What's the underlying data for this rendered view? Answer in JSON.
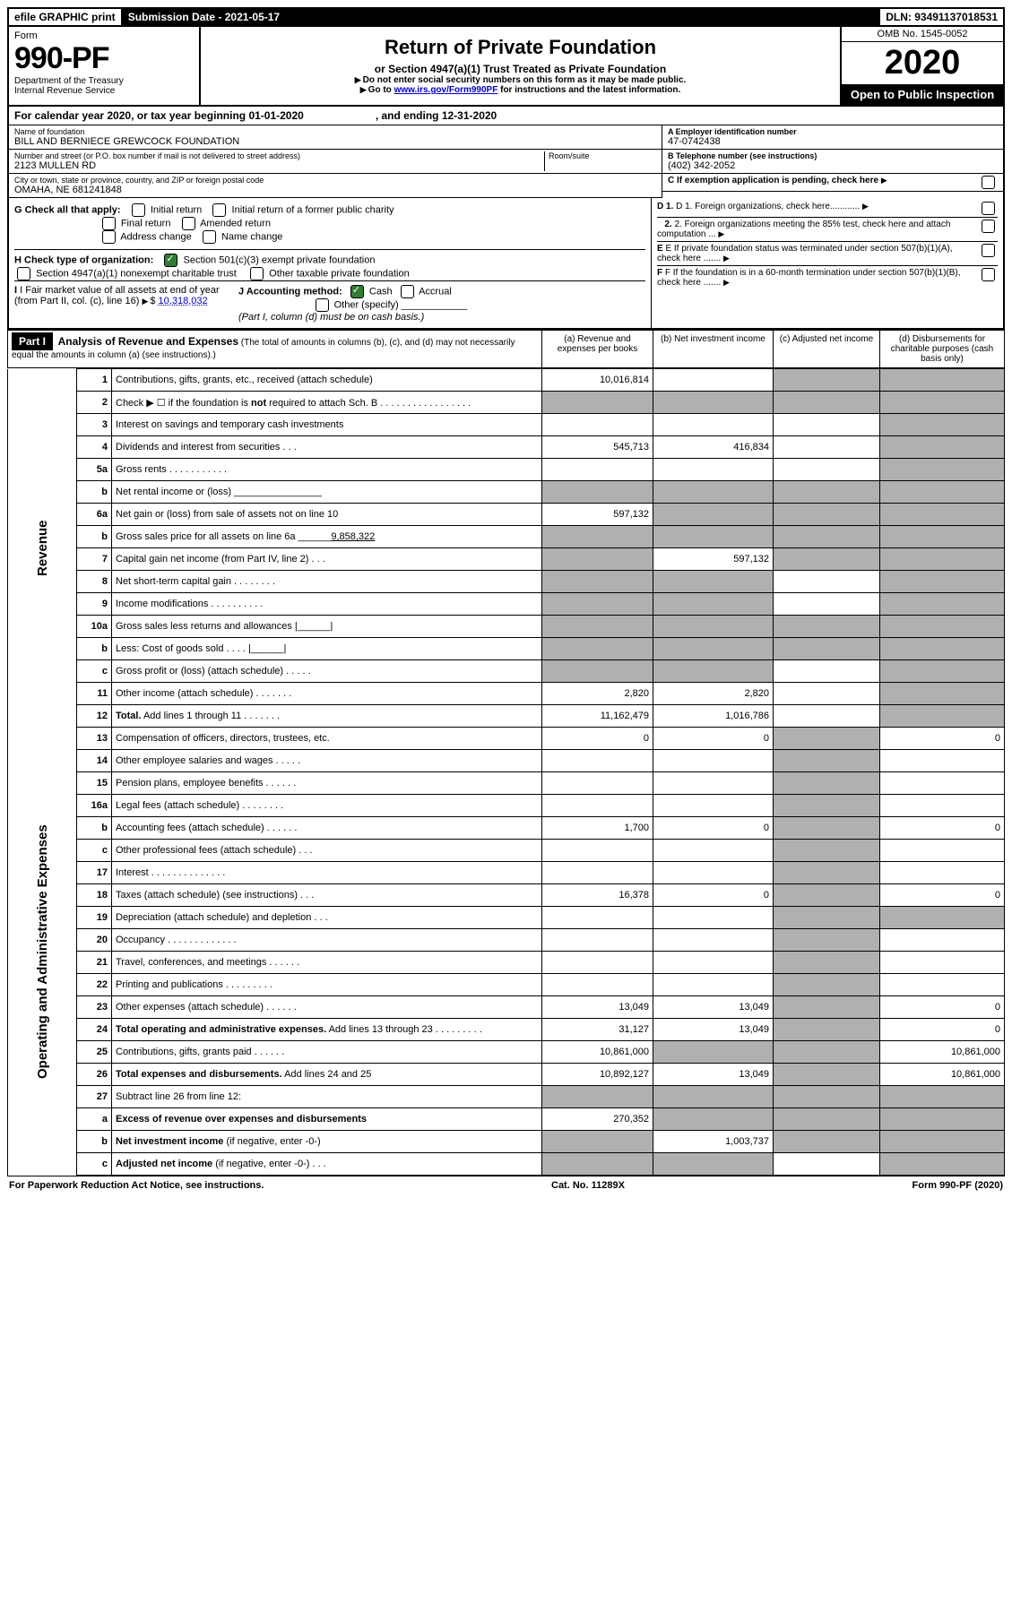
{
  "topbar": {
    "efile": "efile GRAPHIC print",
    "subdate_label": "Submission Date - ",
    "subdate": "2021-05-17",
    "dln_label": "DLN: ",
    "dln": "93491137018531"
  },
  "header": {
    "form_label": "Form",
    "form_no": "990-PF",
    "dept1": "Department of the Treasury",
    "dept2": "Internal Revenue Service",
    "title": "Return of Private Foundation",
    "subtitle": "or Section 4947(a)(1) Trust Treated as Private Foundation",
    "note1": "Do not enter social security numbers on this form as it may be made public.",
    "note2_a": "Go to ",
    "note2_link": "www.irs.gov/Form990PF",
    "note2_b": " for instructions and the latest information.",
    "omb": "OMB No. 1545-0052",
    "year": "2020",
    "inspect": "Open to Public Inspection"
  },
  "calyear": {
    "a": "For calendar year 2020, or tax year beginning 01-01-2020",
    "b": ", and ending 12-31-2020"
  },
  "id": {
    "name_label": "Name of foundation",
    "name": "BILL AND BERNIECE GREWCOCK FOUNDATION",
    "addr_label": "Number and street (or P.O. box number if mail is not delivered to street address)",
    "addr": "2123 MULLEN RD",
    "room_label": "Room/suite",
    "city_label": "City or town, state or province, country, and ZIP or foreign postal code",
    "city": "OMAHA, NE  681241848",
    "ein_label": "A Employer identification number",
    "ein": "47-0742438",
    "tel_label": "B Telephone number (see instructions)",
    "tel": "(402) 342-2052",
    "c_label": "C If exemption application is pending, check here"
  },
  "checks": {
    "g_label": "G Check all that apply:",
    "g_opts": [
      "Initial return",
      "Initial return of a former public charity",
      "Final return",
      "Amended return",
      "Address change",
      "Name change"
    ],
    "h_label": "H Check type of organization:",
    "h_opt1": "Section 501(c)(3) exempt private foundation",
    "h_opt2": "Section 4947(a)(1) nonexempt charitable trust",
    "h_opt3": "Other taxable private foundation",
    "i_label": "I Fair market value of all assets at end of year (from Part II, col. (c), line 16)",
    "i_val": "10,318,032",
    "j_label": "J Accounting method:",
    "j_cash": "Cash",
    "j_accrual": "Accrual",
    "j_other": "Other (specify)",
    "j_note": "(Part I, column (d) must be on cash basis.)",
    "d1": "D 1. Foreign organizations, check here............",
    "d2": "2. Foreign organizations meeting the 85% test, check here and attach computation ...",
    "e": "E  If private foundation status was terminated under section 507(b)(1)(A), check here .......",
    "f": "F  If the foundation is in a 60-month termination under section 507(b)(1)(B), check here .......",
    "arrow": "▶"
  },
  "part1": {
    "label": "Part I",
    "title": "Analysis of Revenue and Expenses",
    "title_note": "(The total of amounts in columns (b), (c), and (d) may not necessarily equal the amounts in column (a) (see instructions).)",
    "col_a": "(a)   Revenue and expenses per books",
    "col_b": "(b)  Net investment income",
    "col_c": "(c)  Adjusted net income",
    "col_d": "(d)  Disbursements for charitable purposes (cash basis only)"
  },
  "sections": {
    "revenue": "Revenue",
    "expenses": "Operating and Administrative Expenses"
  },
  "rows": [
    {
      "n": "1",
      "d": "Contributions, gifts, grants, etc., received (attach schedule)",
      "a": "10,016,814",
      "b": "",
      "c": "s",
      "dd": "s"
    },
    {
      "n": "2",
      "d": "Check ▶ ☐ if the foundation is <b>not</b> required to attach Sch. B   .  .  .  .  .  .  .  .  .  .  .  .  .  .  .  .  .",
      "a": "s",
      "b": "s",
      "c": "s",
      "dd": "s"
    },
    {
      "n": "3",
      "d": "Interest on savings and temporary cash investments",
      "a": "",
      "b": "",
      "c": "",
      "dd": "s"
    },
    {
      "n": "4",
      "d": "Dividends and interest from securities    .   .   .",
      "a": "545,713",
      "b": "416,834",
      "c": "",
      "dd": "s"
    },
    {
      "n": "5a",
      "d": "Gross rents       .   .   .   .   .   .   .   .   .   .   .",
      "a": "",
      "b": "",
      "c": "",
      "dd": "s"
    },
    {
      "n": "b",
      "d": "Net rental income or (loss)  ________________",
      "a": "s",
      "b": "s",
      "c": "s",
      "dd": "s"
    },
    {
      "n": "6a",
      "d": "Net gain or (loss) from sale of assets not on line 10",
      "a": "597,132",
      "b": "s",
      "c": "s",
      "dd": "s"
    },
    {
      "n": "b",
      "d": "Gross sales price for all assets on line 6a ______<u>9,858,322</u>",
      "a": "s",
      "b": "s",
      "c": "s",
      "dd": "s"
    },
    {
      "n": "7",
      "d": "Capital gain net income (from Part IV, line 2)   .   .   .",
      "a": "s",
      "b": "597,132",
      "c": "s",
      "dd": "s"
    },
    {
      "n": "8",
      "d": "Net short-term capital gain   .   .   .   .   .   .   .   .",
      "a": "s",
      "b": "s",
      "c": "",
      "dd": "s"
    },
    {
      "n": "9",
      "d": "Income modifications  .   .   .   .   .   .   .   .   .   .",
      "a": "s",
      "b": "s",
      "c": "",
      "dd": "s"
    },
    {
      "n": "10a",
      "d": "Gross sales less returns and allowances  |______|",
      "a": "s",
      "b": "s",
      "c": "s",
      "dd": "s"
    },
    {
      "n": "b",
      "d": "Less: Cost of goods sold     .   .   .   .  |______|",
      "a": "s",
      "b": "s",
      "c": "s",
      "dd": "s"
    },
    {
      "n": "c",
      "d": "Gross profit or (loss) (attach schedule)    .   .   .   .   .",
      "a": "s",
      "b": "s",
      "c": "",
      "dd": "s"
    },
    {
      "n": "11",
      "d": "Other income (attach schedule)    .   .   .   .   .   .   .",
      "a": "2,820",
      "b": "2,820",
      "c": "",
      "dd": "s"
    },
    {
      "n": "12",
      "d": "<b>Total.</b> Add lines 1 through 11    .   .   .   .   .   .   .",
      "a": "11,162,479",
      "b": "1,016,786",
      "c": "",
      "dd": "s"
    },
    {
      "n": "13",
      "d": "Compensation of officers, directors, trustees, etc.",
      "a": "0",
      "b": "0",
      "c": "s",
      "dd": "0"
    },
    {
      "n": "14",
      "d": "Other employee salaries and wages    .   .   .   .   .",
      "a": "",
      "b": "",
      "c": "s",
      "dd": ""
    },
    {
      "n": "15",
      "d": "Pension plans, employee benefits   .   .   .   .   .   .",
      "a": "",
      "b": "",
      "c": "s",
      "dd": ""
    },
    {
      "n": "16a",
      "d": "Legal fees (attach schedule)  .   .   .   .   .   .   .   .",
      "a": "",
      "b": "",
      "c": "s",
      "dd": ""
    },
    {
      "n": "b",
      "d": "Accounting fees (attach schedule)   .   .   .   .   .   .",
      "a": "1,700",
      "b": "0",
      "c": "s",
      "dd": "0"
    },
    {
      "n": "c",
      "d": "Other professional fees (attach schedule)     .   .   .",
      "a": "",
      "b": "",
      "c": "s",
      "dd": ""
    },
    {
      "n": "17",
      "d": "Interest   .   .   .   .   .   .   .   .   .   .   .   .   .   .",
      "a": "",
      "b": "",
      "c": "s",
      "dd": ""
    },
    {
      "n": "18",
      "d": "Taxes (attach schedule) (see instructions)     .   .   .",
      "a": "16,378",
      "b": "0",
      "c": "s",
      "dd": "0"
    },
    {
      "n": "19",
      "d": "Depreciation (attach schedule) and depletion    .   .   .",
      "a": "",
      "b": "",
      "c": "s",
      "dd": "s"
    },
    {
      "n": "20",
      "d": "Occupancy  .   .   .   .   .   .   .   .   .   .   .   .   .",
      "a": "",
      "b": "",
      "c": "s",
      "dd": ""
    },
    {
      "n": "21",
      "d": "Travel, conferences, and meetings  .   .   .   .   .   .",
      "a": "",
      "b": "",
      "c": "s",
      "dd": ""
    },
    {
      "n": "22",
      "d": "Printing and publications  .   .   .   .   .   .   .   .   .",
      "a": "",
      "b": "",
      "c": "s",
      "dd": ""
    },
    {
      "n": "23",
      "d": "Other expenses (attach schedule)   .   .   .   .   .   .",
      "a": "13,049",
      "b": "13,049",
      "c": "s",
      "dd": "0"
    },
    {
      "n": "24",
      "d": "<b>Total operating and administrative expenses.</b> Add lines 13 through 23   .   .   .   .   .   .   .   .   .",
      "a": "31,127",
      "b": "13,049",
      "c": "s",
      "dd": "0"
    },
    {
      "n": "25",
      "d": "Contributions, gifts, grants paid     .   .   .   .   .   .",
      "a": "10,861,000",
      "b": "s",
      "c": "s",
      "dd": "10,861,000"
    },
    {
      "n": "26",
      "d": "<b>Total expenses and disbursements.</b> Add lines 24 and 25",
      "a": "10,892,127",
      "b": "13,049",
      "c": "s",
      "dd": "10,861,000"
    },
    {
      "n": "27",
      "d": "Subtract line 26 from line 12:",
      "a": "s",
      "b": "s",
      "c": "s",
      "dd": "s"
    },
    {
      "n": "a",
      "d": "<b>Excess of revenue over expenses and disbursements</b>",
      "a": "270,352",
      "b": "s",
      "c": "s",
      "dd": "s"
    },
    {
      "n": "b",
      "d": "<b>Net investment income</b> (if negative, enter -0-)",
      "a": "s",
      "b": "1,003,737",
      "c": "s",
      "dd": "s"
    },
    {
      "n": "c",
      "d": "<b>Adjusted net income</b> (if negative, enter -0-)   .   .   .",
      "a": "s",
      "b": "s",
      "c": "",
      "dd": "s"
    }
  ],
  "footer": {
    "left": "For Paperwork Reduction Act Notice, see instructions.",
    "center": "Cat. No. 11289X",
    "right": "Form 990-PF (2020)"
  },
  "colors": {
    "shaded": "#b0b0b0",
    "link": "#0000cc",
    "check_green": "#2e7d32"
  }
}
